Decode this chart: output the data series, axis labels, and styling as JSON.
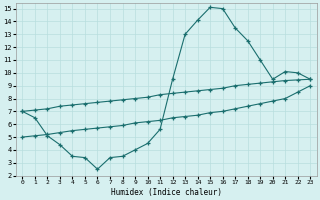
{
  "xlabel": "Humidex (Indice chaleur)",
  "bg_color": "#d6f0f0",
  "grid_color": "#b8dede",
  "line_color": "#1a6e6e",
  "xlim": [
    -0.5,
    23.5
  ],
  "ylim": [
    2,
    15.4
  ],
  "xticks": [
    0,
    1,
    2,
    3,
    4,
    5,
    6,
    7,
    8,
    9,
    10,
    11,
    12,
    13,
    14,
    15,
    16,
    17,
    18,
    19,
    20,
    21,
    22,
    23
  ],
  "yticks": [
    2,
    3,
    4,
    5,
    6,
    7,
    8,
    9,
    10,
    11,
    12,
    13,
    14,
    15
  ],
  "curve1_x": [
    0,
    1,
    2,
    3,
    4,
    5,
    6,
    7,
    8,
    9,
    10,
    11,
    12,
    13,
    14,
    15,
    16,
    17,
    18,
    19,
    20,
    21,
    22,
    23
  ],
  "curve1_y": [
    7.0,
    6.5,
    5.1,
    4.4,
    3.5,
    3.4,
    2.5,
    3.4,
    3.5,
    4.0,
    4.5,
    5.6,
    9.5,
    13.0,
    14.1,
    15.1,
    15.0,
    13.5,
    12.5,
    11.0,
    9.5,
    10.1,
    10.0,
    9.5
  ],
  "curve2_x": [
    0,
    1,
    2,
    3,
    4,
    5,
    6,
    7,
    8,
    9,
    10,
    11,
    12,
    13,
    14,
    15,
    16,
    17,
    18,
    19,
    20,
    21,
    22,
    23
  ],
  "curve2_y": [
    7.0,
    7.1,
    7.2,
    7.4,
    7.5,
    7.6,
    7.7,
    7.8,
    7.9,
    8.0,
    8.1,
    8.3,
    8.4,
    8.5,
    8.6,
    8.7,
    8.8,
    9.0,
    9.1,
    9.2,
    9.3,
    9.4,
    9.45,
    9.5
  ],
  "curve3_x": [
    0,
    1,
    2,
    3,
    4,
    5,
    6,
    7,
    8,
    9,
    10,
    11,
    12,
    13,
    14,
    15,
    16,
    17,
    18,
    19,
    20,
    21,
    22,
    23
  ],
  "curve3_y": [
    5.0,
    5.1,
    5.2,
    5.35,
    5.5,
    5.6,
    5.7,
    5.8,
    5.9,
    6.1,
    6.2,
    6.3,
    6.5,
    6.6,
    6.7,
    6.9,
    7.0,
    7.2,
    7.4,
    7.6,
    7.8,
    8.0,
    8.5,
    9.0
  ],
  "marker": "+"
}
